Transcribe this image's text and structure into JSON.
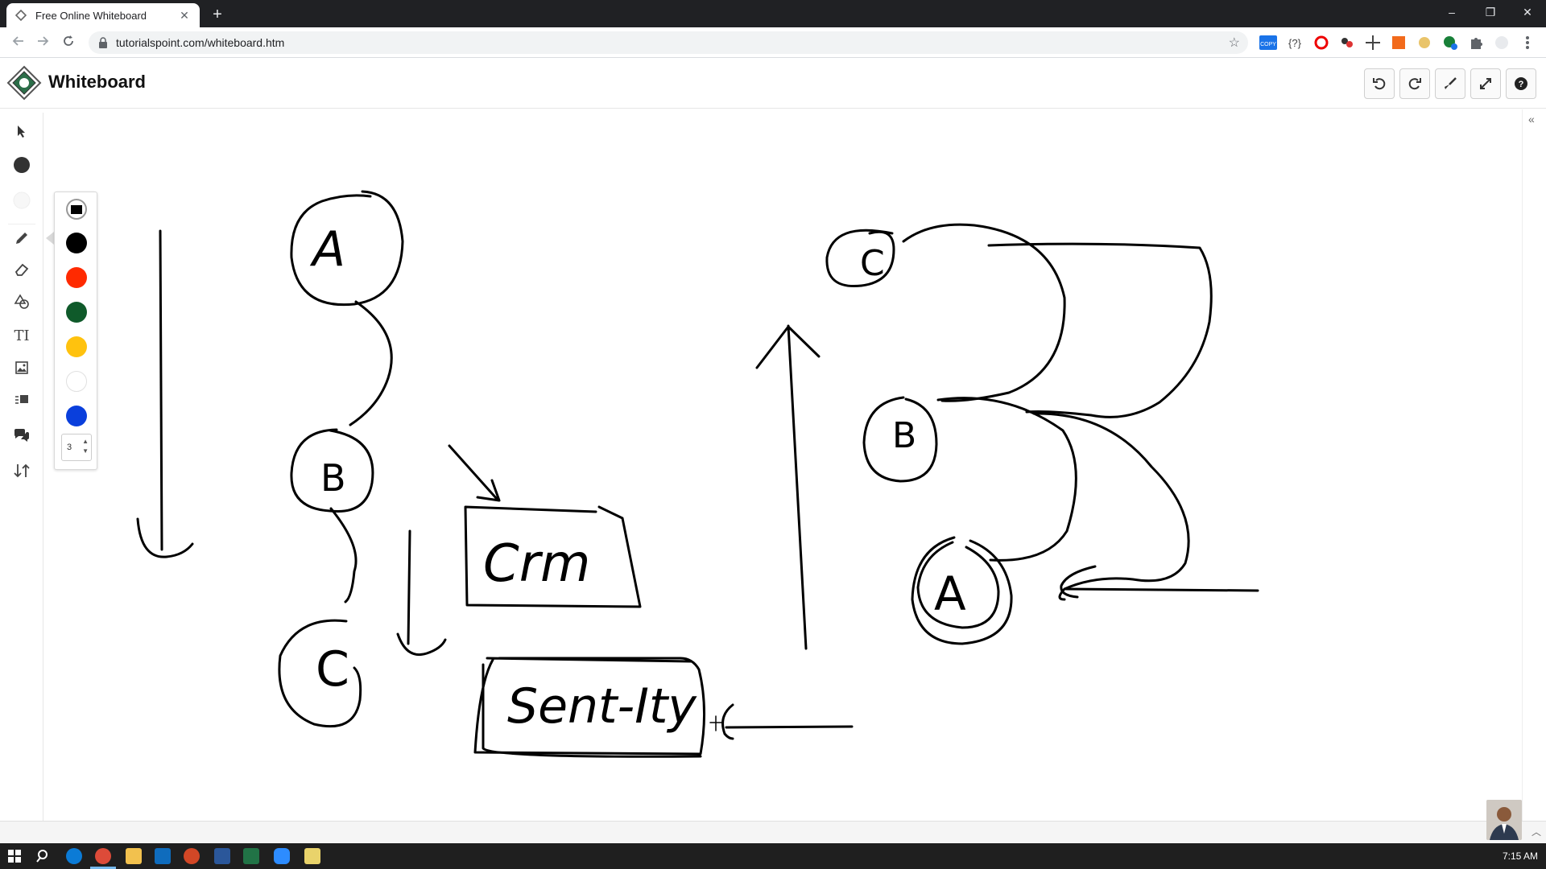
{
  "browser": {
    "tab_title": "Free Online Whiteboard",
    "close_glyph": "✕",
    "new_tab_glyph": "+",
    "url": "tutorialspoint.com/whiteboard.htm",
    "window_controls": [
      "–",
      "❐",
      "✕"
    ],
    "extension_label": "COPY"
  },
  "app": {
    "title": "Whiteboard",
    "header_buttons": [
      "undo-icon",
      "redo-icon",
      "brush-icon",
      "expand-icon",
      "help-icon"
    ]
  },
  "tools": [
    "select-icon",
    "fill-color-icon",
    "stroke-color-icon",
    "pencil-icon",
    "eraser-icon",
    "shapes-icon",
    "text-icon",
    "image-icon",
    "image-text-icon",
    "comment-icon",
    "import-export-icon"
  ],
  "tool_text_label": "TI",
  "palette": {
    "colors": [
      "#000000",
      "#ff2a00",
      "#0f5a2a",
      "#ffc20e",
      "#ffffff",
      "#0a3fdc"
    ],
    "size_value": "3"
  },
  "whiteboard_text": {
    "node_a1": "A",
    "node_b1": "B",
    "node_c1": "C",
    "box_crm": "Crm",
    "box_sentity": "Sent-Ity",
    "node_c2": "C",
    "node_b2": "B",
    "node_a2": "A"
  },
  "taskbar": {
    "time": "7:15 AM"
  }
}
